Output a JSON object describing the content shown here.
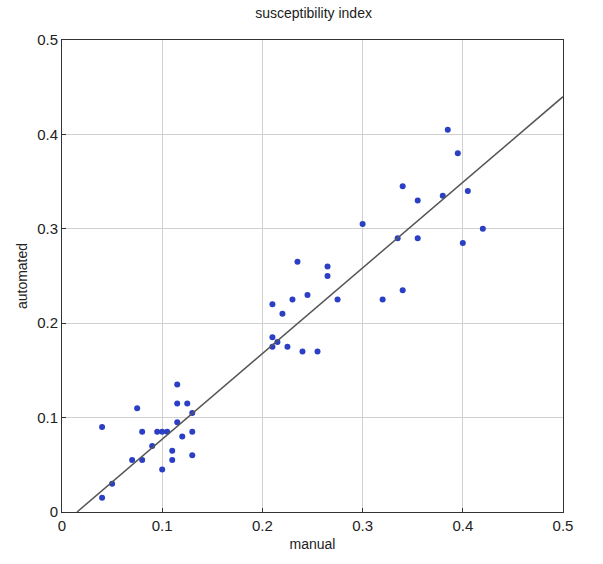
{
  "chart_data": {
    "type": "scatter",
    "title": "susceptibility index",
    "x_label": "manual",
    "y_label": "automated",
    "xlim": [
      0,
      0.5
    ],
    "ylim": [
      0,
      0.5
    ],
    "xticks": [
      0,
      0.1,
      0.2,
      0.3,
      0.4,
      0.5
    ],
    "yticks": [
      0,
      0.1,
      0.2,
      0.3,
      0.4,
      0.5
    ],
    "grid": true,
    "series": [
      {
        "type": "scatter",
        "color": "#2a3fc4",
        "marker": "circle",
        "x": [
          0.04,
          0.04,
          0.05,
          0.07,
          0.075,
          0.08,
          0.08,
          0.09,
          0.095,
          0.1,
          0.1,
          0.105,
          0.11,
          0.11,
          0.115,
          0.115,
          0.115,
          0.12,
          0.125,
          0.13,
          0.13,
          0.13,
          0.21,
          0.21,
          0.21,
          0.215,
          0.22,
          0.225,
          0.23,
          0.235,
          0.24,
          0.245,
          0.255,
          0.265,
          0.265,
          0.275,
          0.3,
          0.32,
          0.335,
          0.34,
          0.34,
          0.355,
          0.355,
          0.38,
          0.385,
          0.395,
          0.4,
          0.405,
          0.42
        ],
        "values": [
          0.09,
          0.015,
          0.03,
          0.055,
          0.11,
          0.085,
          0.055,
          0.07,
          0.085,
          0.045,
          0.085,
          0.085,
          0.055,
          0.065,
          0.135,
          0.115,
          0.095,
          0.08,
          0.115,
          0.105,
          0.085,
          0.06,
          0.22,
          0.185,
          0.175,
          0.18,
          0.21,
          0.175,
          0.225,
          0.265,
          0.17,
          0.23,
          0.17,
          0.26,
          0.25,
          0.225,
          0.305,
          0.225,
          0.29,
          0.235,
          0.345,
          0.33,
          0.29,
          0.335,
          0.405,
          0.38,
          0.285,
          0.34,
          0.3
        ]
      },
      {
        "type": "line",
        "color": "#555555",
        "line_style": "solid",
        "x": [
          0.015,
          0.5
        ],
        "values": [
          0,
          0.44
        ]
      }
    ]
  }
}
